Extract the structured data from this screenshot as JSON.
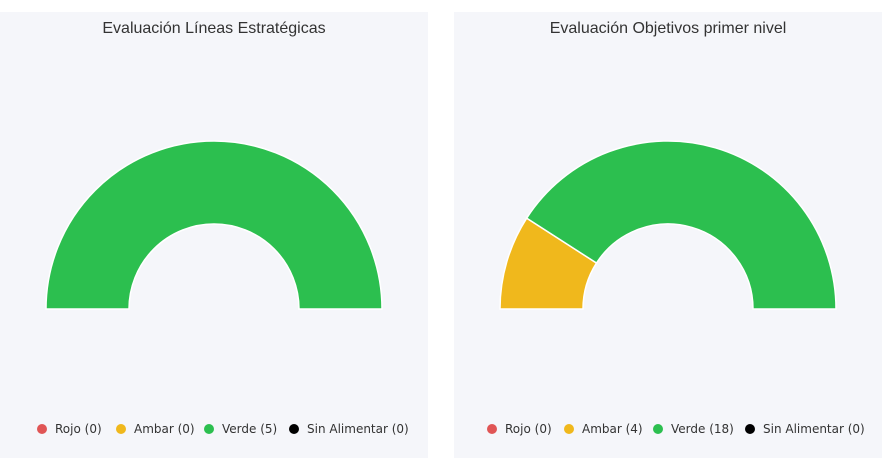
{
  "colors": {
    "rojo": "#e05555",
    "ambar": "#f0b81c",
    "verde": "#2cbf4f",
    "sin_alimentar": "#000000",
    "panel_bg": "#f5f6fa"
  },
  "chart_data": [
    {
      "type": "pie",
      "variant": "semi-donut",
      "title": "Evaluación Líneas Estratégicas",
      "legend_position": "bottom",
      "slices": [
        {
          "name": "Rojo",
          "value": 0,
          "label": "Rojo (0)",
          "color": "#e05555"
        },
        {
          "name": "Ambar",
          "value": 0,
          "label": "Ambar (0)",
          "color": "#f0b81c"
        },
        {
          "name": "Verde",
          "value": 5,
          "label": "Verde (5)",
          "color": "#2cbf4f"
        },
        {
          "name": "Sin Alimentar",
          "value": 0,
          "label": "Sin Alimentar (0)",
          "color": "#000000"
        }
      ]
    },
    {
      "type": "pie",
      "variant": "semi-donut",
      "title": "Evaluación Objetivos primer nivel",
      "legend_position": "bottom",
      "slices": [
        {
          "name": "Rojo",
          "value": 0,
          "label": "Rojo (0)",
          "color": "#e05555"
        },
        {
          "name": "Ambar",
          "value": 4,
          "label": "Ambar (4)",
          "color": "#f0b81c"
        },
        {
          "name": "Verde",
          "value": 18,
          "label": "Verde (18)",
          "color": "#2cbf4f"
        },
        {
          "name": "Sin Alimentar",
          "value": 0,
          "label": "Sin Alimentar (0)",
          "color": "#000000"
        }
      ]
    }
  ]
}
